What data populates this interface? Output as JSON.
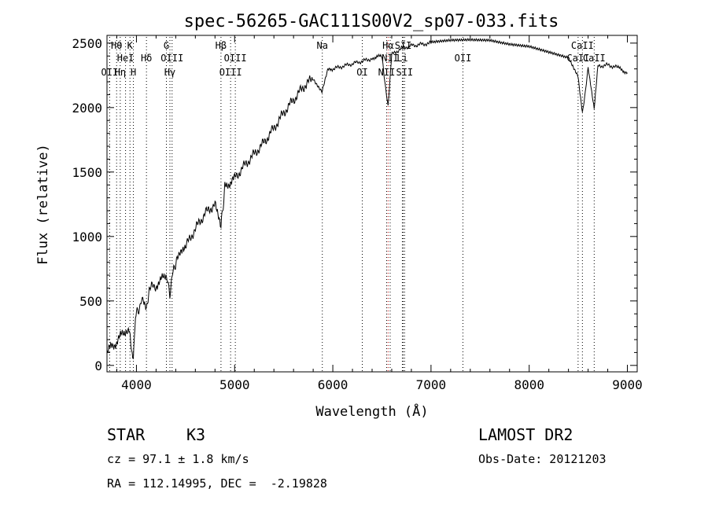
{
  "chart_data": {
    "type": "line",
    "title": "spec-56265-GAC111S00V2_sp07-033.fits",
    "xlabel": "Wavelength (Å)",
    "ylabel": "Flux (relative)",
    "xlim": [
      3700,
      9100
    ],
    "ylim": [
      -50,
      2560
    ],
    "xticks": [
      4000,
      5000,
      6000,
      7000,
      8000,
      9000
    ],
    "xtick_labels": [
      "4000",
      "5000",
      "6000",
      "7000",
      "8000",
      "9000"
    ],
    "yticks": [
      0,
      500,
      1000,
      1500,
      2000,
      2500
    ],
    "ytick_labels": [
      "0",
      "500",
      "1000",
      "1500",
      "2000",
      "2500"
    ],
    "series": [
      {
        "name": "flux",
        "x": [
          3700,
          3750,
          3800,
          3850,
          3900,
          3930,
          3950,
          3968,
          3990,
          4030,
          4070,
          4101,
          4130,
          4200,
          4250,
          4300,
          4340,
          4380,
          4420,
          4500,
          4600,
          4700,
          4800,
          4861,
          4900,
          4950,
          5000,
          5100,
          5200,
          5300,
          5400,
          5500,
          5600,
          5700,
          5800,
          5890,
          5950,
          6000,
          6100,
          6200,
          6300,
          6400,
          6450,
          6500,
          6563,
          6600,
          6700,
          6800,
          6900,
          7000,
          7200,
          7400,
          7600,
          7800,
          8000,
          8200,
          8400,
          8498,
          8542,
          8600,
          8662,
          8700,
          8800,
          8900,
          8950,
          9000
        ],
        "values": [
          100,
          150,
          180,
          240,
          280,
          300,
          80,
          40,
          380,
          450,
          520,
          430,
          600,
          620,
          660,
          700,
          560,
          760,
          820,
          920,
          1060,
          1180,
          1250,
          1070,
          1380,
          1420,
          1450,
          1550,
          1640,
          1730,
          1840,
          1960,
          2060,
          2160,
          2230,
          2120,
          2290,
          2300,
          2320,
          2340,
          2360,
          2380,
          2400,
          2390,
          2000,
          2410,
          2460,
          2480,
          2490,
          2500,
          2520,
          2530,
          2530,
          2500,
          2480,
          2430,
          2380,
          2250,
          1950,
          2300,
          2000,
          2320,
          2330,
          2310,
          2290,
          2270
        ]
      }
    ],
    "spectral_lines": [
      {
        "label": "Hθ",
        "wavelength": 3798,
        "row": 1,
        "color": "#000000"
      },
      {
        "label": "K",
        "wavelength": 3934,
        "row": 1,
        "color": "#000000"
      },
      {
        "label": "HeI",
        "wavelength": 3889,
        "row": 2,
        "color": "#000000"
      },
      {
        "label": "Hδ",
        "wavelength": 4102,
        "row": 2,
        "color": "#000000"
      },
      {
        "label": "OII",
        "wavelength": 3727,
        "row": 3,
        "color": "#000000"
      },
      {
        "label": "Hη",
        "wavelength": 3835,
        "row": 3,
        "color": "#000000"
      },
      {
        "label": "H",
        "wavelength": 3969,
        "row": 3,
        "color": "#000000"
      },
      {
        "label": "G",
        "wavelength": 4305,
        "row": 1,
        "color": "#000000"
      },
      {
        "label": "OIII",
        "wavelength": 4363,
        "row": 2,
        "color": "#000000"
      },
      {
        "label": "Hγ",
        "wavelength": 4341,
        "row": 3,
        "color": "#000000"
      },
      {
        "label": "Hβ",
        "wavelength": 4861,
        "row": 1,
        "color": "#000000"
      },
      {
        "label": "OIII",
        "wavelength": 5007,
        "row": 2,
        "color": "#000000"
      },
      {
        "label": "OIII",
        "wavelength": 4959,
        "row": 3,
        "color": "#000000"
      },
      {
        "label": "Na",
        "wavelength": 5893,
        "row": 1,
        "color": "#000000"
      },
      {
        "label": "OI",
        "wavelength": 6300,
        "row": 3,
        "color": "#000000"
      },
      {
        "label": "Hα",
        "wavelength": 6563,
        "row": 1,
        "color": "#cc0000"
      },
      {
        "label": "SII",
        "wavelength": 6717,
        "row": 1,
        "color": "#000000"
      },
      {
        "label": "NII",
        "wavelength": 6584,
        "row": 2,
        "color": "#000000"
      },
      {
        "label": "Li",
        "wavelength": 6708,
        "row": 2,
        "color": "#000000"
      },
      {
        "label": "NII",
        "wavelength": 6548,
        "row": 3,
        "color": "#000000"
      },
      {
        "label": "SII",
        "wavelength": 6731,
        "row": 3,
        "color": "#000000"
      },
      {
        "label": "OII",
        "wavelength": 7325,
        "row": 2,
        "color": "#000000"
      },
      {
        "label": "CaII",
        "wavelength": 8542,
        "row": 1,
        "color": "#000000"
      },
      {
        "label": "CaII",
        "wavelength": 8498,
        "row": 2,
        "color": "#000000"
      },
      {
        "label": "CaII",
        "wavelength": 8662,
        "row": 2,
        "color": "#000000"
      }
    ]
  },
  "info": {
    "object_class": "STAR",
    "subclass": "K3",
    "survey": "LAMOST DR2",
    "redshift_line": "cz = 97.1 ± 1.8 km/s",
    "obs_date": "Obs-Date: 20121203",
    "coords": "RA = 112.14995, DEC =  -2.19828"
  }
}
